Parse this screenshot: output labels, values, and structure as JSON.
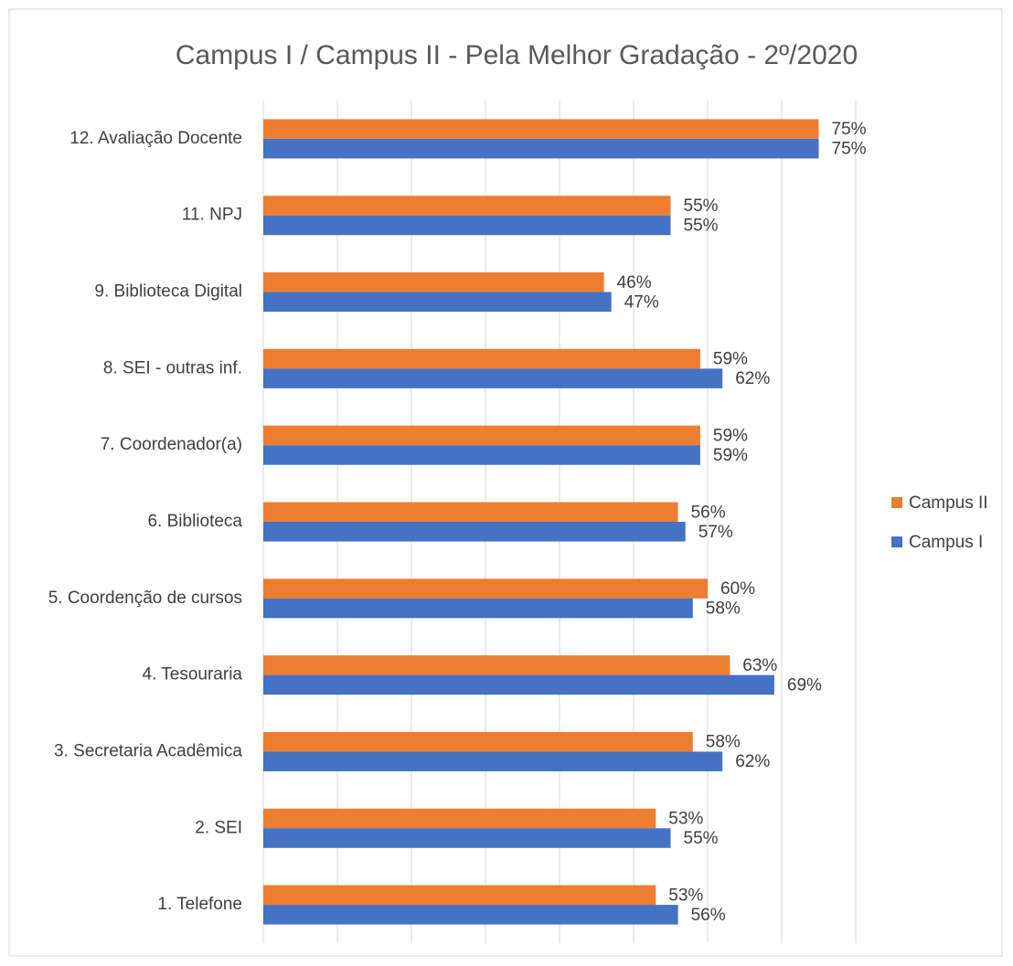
{
  "chart_data": {
    "type": "bar",
    "orientation": "horizontal",
    "title": "Campus I / Campus II - Pela Melhor Gradação - 2º/2020",
    "categories": [
      "12. Avaliação Docente",
      "11. NPJ",
      "9. Biblioteca Digital",
      "8. SEI - outras inf.",
      "7. Coordenador(a)",
      "6. Biblioteca",
      "5. Coordenção de cursos",
      "4. Tesouraria",
      "3. Secretaria Acadêmica",
      "2. SEI",
      "1. Telefone"
    ],
    "series": [
      {
        "name": "Campus II",
        "color": "#ed7d31",
        "values": [
          75,
          55,
          46,
          59,
          59,
          56,
          60,
          63,
          58,
          53,
          53
        ],
        "value_labels": [
          "75%",
          "55%",
          "46%",
          "59%",
          "59%",
          "56%",
          "60%",
          "63%",
          "58%",
          "53%",
          "53%"
        ]
      },
      {
        "name": "Campus I",
        "color": "#4472c4",
        "values": [
          75,
          55,
          47,
          62,
          59,
          57,
          58,
          69,
          62,
          55,
          56
        ],
        "value_labels": [
          "75%",
          "55%",
          "47%",
          "62%",
          "59%",
          "57%",
          "58%",
          "69%",
          "62%",
          "55%",
          "56%"
        ]
      }
    ],
    "xlim": [
      0,
      80
    ],
    "xticks": [
      0,
      10,
      20,
      30,
      40,
      50,
      60,
      70,
      80
    ],
    "grid": true,
    "legend": "right"
  }
}
